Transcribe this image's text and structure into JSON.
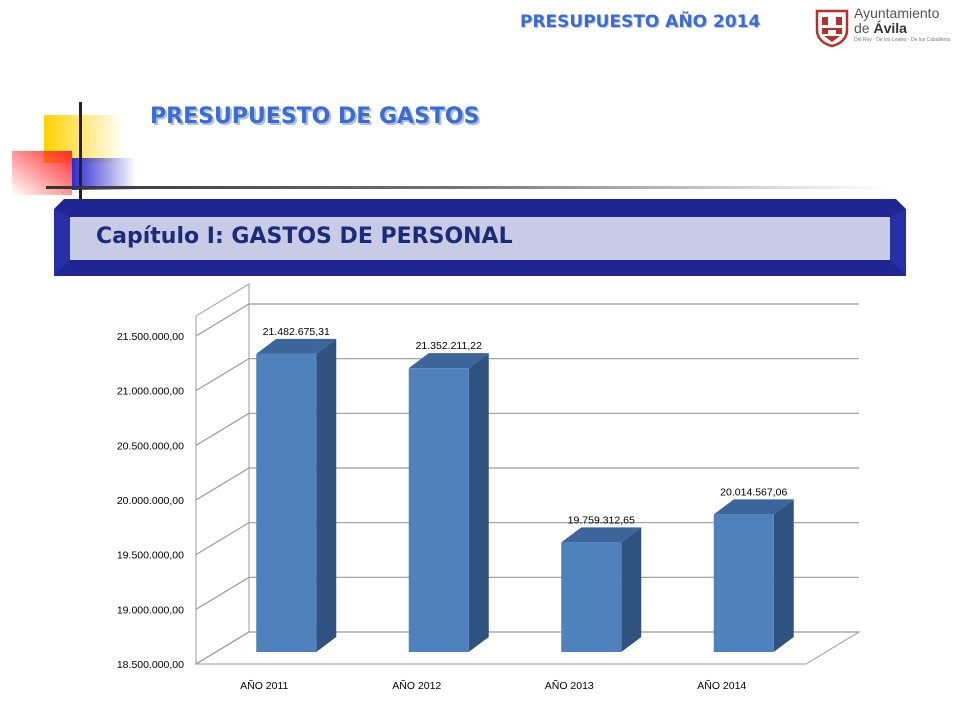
{
  "header": {
    "budget_year_title": "PRESUPUESTO AÑO 2014",
    "logo_line1": "Ayuntamiento",
    "logo_line2_prefix": "de ",
    "logo_line2_name": "Ávila",
    "logo_tagline": "Del Rey · De los Leales · De los Caballeros"
  },
  "section_title": "PRESUPUESTO DE GASTOS",
  "chapter_title": "Capítulo I: GASTOS DE PERSONAL",
  "colors": {
    "title_blue": "#3a6bd6",
    "banner_dark": "#1f2694",
    "banner_light": "#c8cbe6",
    "bar_front": "#4f81bd",
    "bar_side": "#2f5280",
    "bar_top": "#3c659c"
  },
  "chart_data": {
    "type": "bar",
    "categories": [
      "AÑO 2011",
      "AÑO 2012",
      "AÑO 2013",
      "AÑO 2014"
    ],
    "values": [
      21482675.31,
      21352211.22,
      19759312.65,
      20014567.06
    ],
    "data_labels": [
      "21.482.675,31",
      "21.352.211,22",
      "19.759.312,65",
      "20.014.567,06"
    ],
    "y_ticks": [
      18500000,
      19000000,
      19500000,
      20000000,
      20500000,
      21000000,
      21500000
    ],
    "y_tick_labels": [
      "18.500.000,00",
      "19.000.000,00",
      "19.500.000,00",
      "20.000.000,00",
      "20.500.000,00",
      "21.000.000,00",
      "21.500.000,00"
    ],
    "ylim": [
      18500000,
      21500000
    ],
    "grid": true,
    "style": "3d",
    "legend": "none",
    "title": "",
    "xlabel": "",
    "ylabel": ""
  }
}
